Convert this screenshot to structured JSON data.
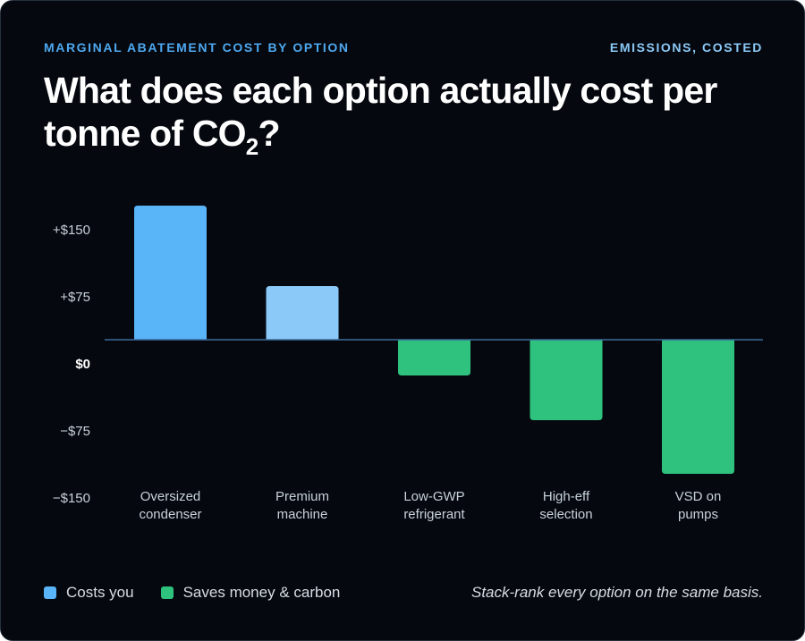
{
  "header": {
    "eyebrow": "MARGINAL ABATEMENT COST BY OPTION",
    "tag": "EMISSIONS, COSTED",
    "title_main": "What does each option actually cost per tonne of CO",
    "title_sub": "2",
    "title_end": "?"
  },
  "legend": {
    "items": [
      {
        "label": "Costs you",
        "color": "#5ab4f8"
      },
      {
        "label": "Saves money & carbon",
        "color": "#2ec27e"
      }
    ]
  },
  "footnote": "Stack-rank every option on the same basis.",
  "colors": {
    "background": "#05090f",
    "cost": "#5ab4f8",
    "cost_light": "#8bc9f8",
    "saving": "#2ec27e",
    "axis": "#3d6a9a"
  },
  "chart_data": {
    "type": "bar",
    "categories": [
      [
        "Oversized",
        "condenser"
      ],
      [
        "Premium",
        "machine"
      ],
      [
        "Low-GWP",
        "refrigerant"
      ],
      [
        "High-eff",
        "selection"
      ],
      [
        "VSD on",
        "pumps"
      ]
    ],
    "values": [
      150,
      60,
      -40,
      -90,
      -150
    ],
    "bar_colors": [
      "#5ab4f8",
      "#8bc9f8",
      "#2ec27e",
      "#2ec27e",
      "#2ec27e"
    ],
    "y_ticks": [
      150,
      75,
      0,
      -75,
      -150
    ],
    "y_tick_labels": [
      "+$150",
      "+$75",
      "$0",
      "−$75",
      "−$150"
    ],
    "ylim": [
      -150,
      150
    ],
    "grid": false,
    "legend_position": "bottom-left"
  }
}
